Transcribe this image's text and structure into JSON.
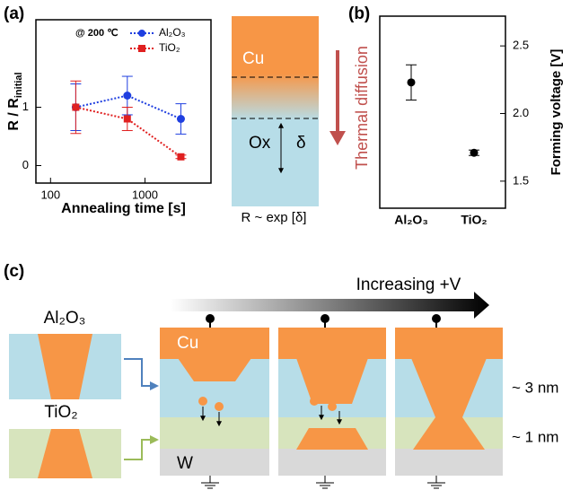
{
  "chart_data": [
    {
      "type": "line",
      "panel_label": "(a)",
      "annotation": "@ 200 ℃",
      "xlabel": "Annealing time [s]",
      "ylabel": {
        "main": "R / R",
        "sub": "initial"
      },
      "x": [
        185,
        650,
        2400
      ],
      "xlog": true,
      "xlim": [
        70,
        5000
      ],
      "xticks": [
        100,
        1000
      ],
      "ylim": [
        -0.3,
        2.5
      ],
      "yticks": [
        0,
        1
      ],
      "legend": "upper right",
      "series": [
        {
          "name": "Al₂O₃",
          "color": "#1f3fe0",
          "marker": "circle",
          "values": [
            1.0,
            1.2,
            0.8
          ],
          "errors": [
            0.4,
            0.33,
            0.26
          ]
        },
        {
          "name": "TiO₂",
          "color": "#e02020",
          "marker": "square",
          "values": [
            1.0,
            0.8,
            0.15
          ],
          "errors": [
            0.45,
            0.2,
            0.03
          ]
        }
      ]
    },
    {
      "type": "scatter",
      "panel_label": "(b)",
      "y2label": "Forming voltage [V]",
      "categories": [
        "Al₂O₃",
        "TiO₂"
      ],
      "y2lim": [
        1.3,
        2.72
      ],
      "y2ticks": [
        1.5,
        {
          "value": 2,
          "label": "2.0"
        },
        2.5
      ],
      "series": [
        {
          "axis": "y2",
          "color": "#000000",
          "values": [
            2.23,
            1.71
          ],
          "errors": [
            0.13,
            0.02
          ]
        }
      ]
    }
  ],
  "diagram": {
    "cu": "Cu",
    "ox": "Ox",
    "delta": "δ",
    "arrow": "Thermal diffusion",
    "relation": "R ~ exp [δ]"
  },
  "panel_c": {
    "label": "(c)",
    "voltage": "Increasing +V",
    "top_material": "Al₂O₃",
    "bottom_material": "TiO₂",
    "electrode_top": "Cu",
    "electrode_bottom": "W",
    "thick_top": "~ 3 nm",
    "thick_bottom": "~ 1 nm"
  }
}
